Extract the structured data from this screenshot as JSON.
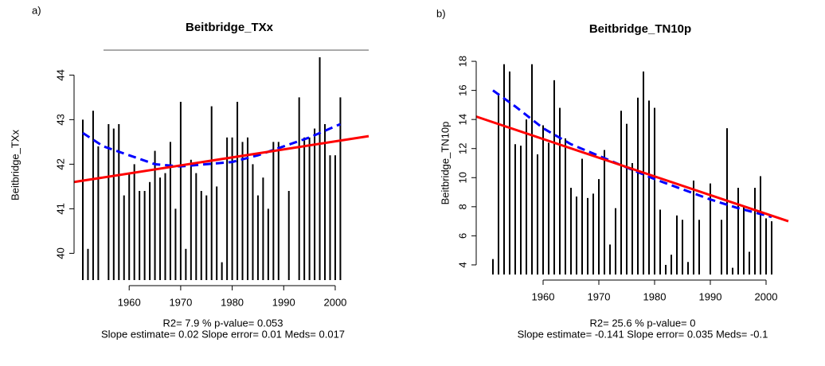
{
  "chart_data": [
    {
      "type": "bar",
      "panel_label": "a)",
      "title": "Beitbridge_TXx",
      "y_label": "Beitbridge_TXx",
      "x": [
        1951,
        1952,
        1953,
        1954,
        1955,
        1956,
        1957,
        1958,
        1959,
        1960,
        1961,
        1962,
        1963,
        1964,
        1965,
        1966,
        1967,
        1968,
        1969,
        1970,
        1971,
        1972,
        1973,
        1974,
        1975,
        1976,
        1977,
        1978,
        1979,
        1980,
        1981,
        1982,
        1983,
        1984,
        1985,
        1986,
        1987,
        1988,
        1989,
        1990,
        1991,
        1992,
        1993,
        1994,
        1995,
        1996,
        1997,
        1998,
        1999,
        2000,
        2001
      ],
      "values": [
        43.0,
        40.1,
        43.2,
        42.4,
        39.4,
        42.9,
        42.8,
        42.9,
        41.3,
        41.8,
        42.0,
        41.4,
        41.4,
        41.6,
        42.3,
        41.7,
        41.8,
        42.5,
        41.0,
        43.4,
        40.1,
        42.1,
        41.8,
        41.4,
        41.3,
        43.3,
        41.5,
        39.8,
        42.6,
        42.6,
        43.4,
        42.5,
        42.6,
        42.0,
        41.3,
        41.7,
        41.0,
        42.5,
        42.5,
        null,
        41.4,
        null,
        43.5,
        42.6,
        42.6,
        42.8,
        44.4,
        42.9,
        42.2,
        42.2,
        43.5
      ],
      "color": "#000000",
      "trend": {
        "color": "#ff0000",
        "x": [
          1949.3,
          2006.5
        ],
        "values": [
          41.6,
          42.63
        ]
      },
      "loess": {
        "color": "#0000ff",
        "dashed": true,
        "x": [
          1951,
          1955,
          1960,
          1965,
          1970,
          1975,
          1980,
          1985,
          1990,
          1995,
          2001
        ],
        "values": [
          42.7,
          42.4,
          42.2,
          42.0,
          41.95,
          42.0,
          42.05,
          42.2,
          42.4,
          42.6,
          42.9
        ]
      },
      "xlim": [
        1949.3,
        2006.5
      ],
      "xticks": [
        1960,
        1970,
        1980,
        1990,
        2000
      ],
      "ylim": [
        39.4,
        44.56
      ],
      "yticks": [
        40,
        41,
        42,
        43,
        44
      ],
      "grid": false,
      "notes": [
        "R2= 7.9 % p-value= 0.053",
        "Slope estimate= 0.02  Slope error= 0.01  Meds= 0.017"
      ]
    },
    {
      "type": "bar",
      "panel_label": "b)",
      "title": "Beitbridge_TN10p",
      "y_label": "Beitbridge_TN10p",
      "x": [
        1951,
        1952,
        1953,
        1954,
        1955,
        1956,
        1957,
        1958,
        1959,
        1960,
        1961,
        1962,
        1963,
        1964,
        1965,
        1966,
        1967,
        1968,
        1969,
        1970,
        1971,
        1972,
        1973,
        1974,
        1975,
        1976,
        1977,
        1978,
        1979,
        1980,
        1981,
        1982,
        1983,
        1984,
        1985,
        1986,
        1987,
        1988,
        1989,
        1990,
        1991,
        1992,
        1993,
        1994,
        1995,
        1996,
        1997,
        1998,
        1999,
        2000,
        2001
      ],
      "values": [
        4.4,
        15.8,
        17.8,
        17.3,
        12.3,
        12.2,
        14.0,
        17.8,
        11.6,
        13.6,
        12.4,
        16.7,
        14.8,
        12.7,
        9.3,
        8.7,
        11.3,
        8.6,
        8.9,
        9.9,
        11.9,
        5.4,
        7.9,
        14.6,
        13.7,
        11.0,
        15.5,
        17.3,
        15.3,
        14.8,
        7.8,
        4.0,
        4.7,
        7.4,
        7.1,
        4.2,
        9.8,
        7.1,
        null,
        9.6,
        null,
        7.1,
        13.4,
        3.8,
        9.3,
        8.0,
        4.9,
        9.3,
        10.1,
        7.2,
        7.0
      ],
      "color": "#000000",
      "trend": {
        "color": "#ff0000",
        "x": [
          1948,
          2004
        ],
        "values": [
          14.2,
          7.0
        ]
      },
      "loess": {
        "color": "#0000ff",
        "dashed": true,
        "x": [
          1951,
          1955,
          1960,
          1965,
          1970,
          1975,
          1980,
          1985,
          1990,
          1995,
          2001
        ],
        "values": [
          16.0,
          14.9,
          13.4,
          12.3,
          11.5,
          10.7,
          9.9,
          9.2,
          8.5,
          7.9,
          7.3
        ]
      },
      "xlim": [
        1948,
        2004
      ],
      "xticks": [
        1960,
        1970,
        1980,
        1990,
        2000
      ],
      "ylim": [
        3.34,
        18.66
      ],
      "yticks": [
        4,
        6,
        8,
        10,
        12,
        14,
        16,
        18
      ],
      "grid": false,
      "notes": [
        "R2= 25.6 % p-value= 0",
        "Slope estimate= -0.141  Slope error= 0.035  Meds= -0.1"
      ]
    }
  ]
}
